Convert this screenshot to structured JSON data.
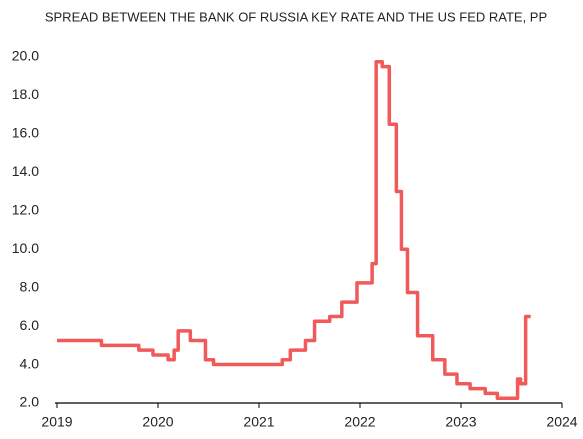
{
  "chart_data": {
    "type": "line",
    "title": "SPREAD BETWEEN THE BANK OF RUSSIA KEY RATE AND THE US FED RATE, PP",
    "color": "#f05a5b",
    "x": [
      2019.0,
      2019.44,
      2019.44,
      2019.81,
      2019.81,
      2019.95,
      2019.95,
      2020.1,
      2020.1,
      2020.16,
      2020.16,
      2020.2,
      2020.2,
      2020.32,
      2020.32,
      2020.47,
      2020.47,
      2020.55,
      2020.55,
      2021.23,
      2021.23,
      2021.31,
      2021.31,
      2021.46,
      2021.46,
      2021.55,
      2021.55,
      2021.7,
      2021.7,
      2021.82,
      2021.82,
      2021.97,
      2021.97,
      2022.12,
      2022.12,
      2022.16,
      2022.16,
      2022.22,
      2022.22,
      2022.29,
      2022.29,
      2022.36,
      2022.36,
      2022.41,
      2022.41,
      2022.47,
      2022.47,
      2022.57,
      2022.57,
      2022.72,
      2022.72,
      2022.84,
      2022.84,
      2022.96,
      2022.96,
      2023.09,
      2023.09,
      2023.24,
      2023.24,
      2023.36,
      2023.36,
      2023.56,
      2023.56,
      2023.59,
      2023.59,
      2023.64,
      2023.64,
      2023.69
    ],
    "values": [
      5.25,
      5.25,
      5.0,
      5.0,
      4.75,
      4.75,
      4.5,
      4.5,
      4.25,
      4.25,
      4.75,
      4.75,
      5.75,
      5.75,
      5.25,
      5.25,
      4.25,
      4.25,
      4.0,
      4.0,
      4.25,
      4.25,
      4.75,
      4.75,
      5.25,
      5.25,
      6.25,
      6.25,
      6.5,
      6.5,
      7.25,
      7.25,
      8.25,
      8.25,
      9.25,
      9.25,
      19.75,
      19.75,
      19.5,
      19.5,
      16.5,
      16.5,
      13.0,
      13.0,
      10.0,
      10.0,
      7.75,
      7.75,
      5.5,
      5.5,
      4.25,
      4.25,
      3.5,
      3.5,
      3.0,
      3.0,
      2.75,
      2.75,
      2.5,
      2.5,
      2.25,
      2.25,
      3.25,
      3.25,
      3.0,
      3.0,
      6.5,
      6.5
    ],
    "xlim": [
      2019,
      2024
    ],
    "xticks": [
      2019,
      2020,
      2021,
      2022,
      2023,
      2024
    ],
    "ylim": [
      2,
      20
    ],
    "yticks": [
      {
        "value": 2,
        "label": "2.0"
      },
      {
        "value": 4,
        "label": "4.0"
      },
      {
        "value": 6,
        "label": "6.0"
      },
      {
        "value": 8,
        "label": "8.0"
      },
      {
        "value": 10,
        "label": "10.0"
      },
      {
        "value": 12,
        "label": "12.0"
      },
      {
        "value": 14,
        "label": "14.0"
      },
      {
        "value": 16,
        "label": "16.0"
      },
      {
        "value": 18,
        "label": "18.0"
      },
      {
        "value": 20,
        "label": "20.0"
      }
    ]
  }
}
